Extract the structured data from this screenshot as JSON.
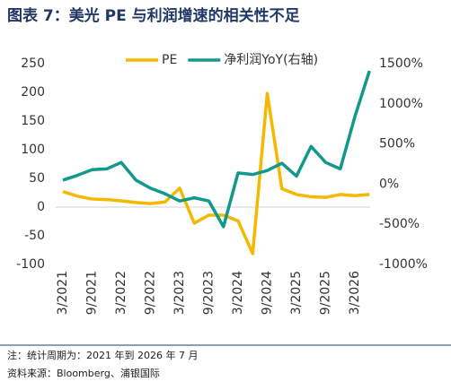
{
  "title": "图表 7：美光 PE 与利润增速的相关性不足",
  "notes": [
    "注：统计周期为：2021 年到 2026 年 7 月",
    "资料来源：Bloomberg、浦银国际"
  ],
  "chart_data": {
    "type": "line",
    "categories": [
      "3/2021",
      null,
      "9/2021",
      null,
      "3/2022",
      null,
      "9/2022",
      null,
      "3/2023",
      null,
      "9/2023",
      null,
      "3/2024",
      null,
      "9/2024",
      null,
      "3/2025",
      null,
      "9/2025",
      null,
      "3/2026",
      null
    ],
    "series": [
      {
        "name": "PE",
        "color": "#f5b800",
        "values": [
          27,
          19,
          14,
          13,
          11,
          8,
          6,
          9,
          33,
          -28,
          -14,
          -14,
          -24,
          -81,
          198,
          32,
          22,
          18,
          17,
          22,
          20,
          22
        ]
      },
      {
        "name": "净利润YoY(右轴)",
        "color": "#12998c",
        "axis": "y2",
        "values": [
          50,
          110,
          180,
          190,
          270,
          50,
          -50,
          -120,
          -210,
          -170,
          -210,
          -530,
          140,
          120,
          170,
          260,
          100,
          470,
          270,
          190,
          840,
          1410
        ]
      }
    ],
    "ylim": [
      -100,
      250
    ],
    "yticks": [
      -100,
      -50,
      0,
      50,
      100,
      150,
      200,
      250
    ],
    "y2lim": [
      -1000,
      1500
    ],
    "y2ticks": [
      {
        "value": -1000,
        "label": "-1000%"
      },
      {
        "value": -500,
        "label": "-500%"
      },
      {
        "value": 0,
        "label": "0%"
      },
      {
        "value": 500,
        "label": "500%"
      },
      {
        "value": 1000,
        "label": "1000%"
      },
      {
        "value": 1500,
        "label": "1500%"
      }
    ],
    "legend": "top"
  }
}
